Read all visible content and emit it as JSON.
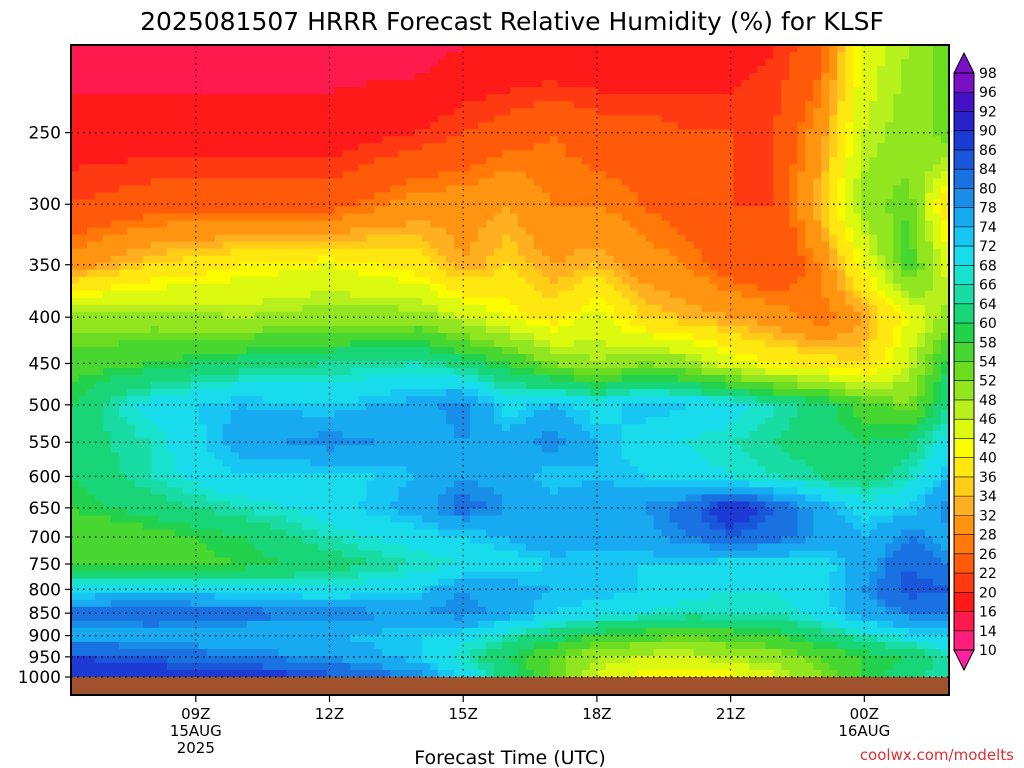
{
  "chart_data": {
    "type": "heatmap",
    "title": "2025081507 HRRR Forecast Relative Humidity (%) for KLSF",
    "xlabel": "Forecast Time (UTC)",
    "ylabel": "",
    "y_axis": {
      "scale": "log-pressure",
      "inverted": true,
      "range": [
        1000,
        200
      ],
      "ticks": [
        250,
        300,
        350,
        400,
        450,
        500,
        550,
        600,
        650,
        700,
        750,
        800,
        850,
        900,
        950,
        1000
      ]
    },
    "x_axis": {
      "range": [
        6.2,
        25.9
      ],
      "ticks": [
        {
          "hour": 9,
          "label": "09Z",
          "sub1": "15AUG",
          "sub2": "2025"
        },
        {
          "hour": 12,
          "label": "12Z",
          "sub1": "",
          "sub2": ""
        },
        {
          "hour": 15,
          "label": "15Z",
          "sub1": "",
          "sub2": ""
        },
        {
          "hour": 18,
          "label": "18Z",
          "sub1": "",
          "sub2": ""
        },
        {
          "hour": 21,
          "label": "21Z",
          "sub1": "",
          "sub2": ""
        },
        {
          "hour": 24,
          "label": "00Z",
          "sub1": "16AUG",
          "sub2": ""
        }
      ]
    },
    "grid": true,
    "colorbar": {
      "placement": "right",
      "levels": [
        10,
        14,
        16,
        20,
        22,
        26,
        28,
        32,
        34,
        36,
        40,
        42,
        46,
        48,
        52,
        54,
        58,
        60,
        64,
        66,
        68,
        72,
        74,
        78,
        80,
        84,
        86,
        90,
        92,
        96,
        98
      ],
      "colors": [
        "#ff1fa0",
        "#ff1f7a",
        "#ff1a4e",
        "#ff1a1a",
        "#ff3a12",
        "#ff5a0a",
        "#ff7808",
        "#ff9410",
        "#ffb020",
        "#ffcc18",
        "#ffe810",
        "#fcfc00",
        "#dcfa10",
        "#b8f01e",
        "#92e620",
        "#6cdc20",
        "#48d630",
        "#22d24c",
        "#18d678",
        "#18dca4",
        "#18e2cc",
        "#18dcec",
        "#18c6f4",
        "#18aaf0",
        "#188ee8",
        "#1a72e2",
        "#1a56da",
        "#1c3ad4",
        "#2822cc",
        "#4412c6",
        "#7a10c4"
      ]
    },
    "ground_color": "#a0522d",
    "credit": "coolwx.com/modelts",
    "humidity_field": {
      "pressure_levels": [
        200,
        250,
        300,
        350,
        400,
        450,
        500,
        550,
        600,
        650,
        700,
        750,
        800,
        850,
        900,
        950,
        990
      ],
      "times": [
        6.2,
        8,
        10,
        12,
        14,
        15,
        16,
        17,
        18,
        19,
        20,
        21,
        22,
        23,
        24,
        25,
        25.9
      ],
      "values": [
        [
          14,
          14,
          14,
          14,
          14,
          16,
          16,
          16,
          16,
          16,
          18,
          18,
          20,
          24,
          44,
          48,
          54
        ],
        [
          18,
          18,
          18,
          18,
          20,
          22,
          24,
          26,
          24,
          24,
          22,
          22,
          22,
          30,
          46,
          50,
          54
        ],
        [
          22,
          24,
          24,
          24,
          30,
          30,
          32,
          28,
          28,
          26,
          24,
          22,
          22,
          34,
          50,
          54,
          36
        ],
        [
          30,
          36,
          40,
          42,
          38,
          32,
          36,
          32,
          34,
          30,
          28,
          24,
          22,
          28,
          42,
          56,
          44
        ],
        [
          50,
          50,
          48,
          50,
          50,
          46,
          42,
          38,
          44,
          36,
          34,
          32,
          30,
          26,
          32,
          42,
          50
        ],
        [
          56,
          58,
          62,
          64,
          66,
          62,
          58,
          52,
          48,
          52,
          50,
          44,
          40,
          38,
          36,
          46,
          60
        ],
        [
          60,
          70,
          74,
          72,
          76,
          80,
          70,
          74,
          70,
          74,
          72,
          70,
          66,
          62,
          56,
          52,
          64
        ],
        [
          62,
          66,
          76,
          80,
          76,
          78,
          76,
          80,
          74,
          70,
          68,
          66,
          64,
          62,
          60,
          62,
          70
        ],
        [
          60,
          66,
          72,
          70,
          74,
          78,
          76,
          72,
          74,
          72,
          70,
          68,
          66,
          64,
          62,
          66,
          74
        ],
        [
          58,
          62,
          66,
          70,
          76,
          82,
          78,
          76,
          76,
          78,
          82,
          90,
          84,
          76,
          70,
          72,
          80
        ],
        [
          54,
          56,
          60,
          66,
          70,
          72,
          74,
          78,
          76,
          76,
          80,
          84,
          82,
          78,
          74,
          80,
          76
        ],
        [
          56,
          56,
          58,
          62,
          66,
          68,
          70,
          72,
          72,
          72,
          72,
          70,
          70,
          70,
          76,
          84,
          80
        ],
        [
          70,
          72,
          70,
          68,
          72,
          78,
          76,
          74,
          74,
          72,
          70,
          68,
          68,
          70,
          78,
          86,
          84
        ],
        [
          82,
          84,
          82,
          80,
          78,
          80,
          76,
          72,
          70,
          68,
          66,
          66,
          66,
          70,
          76,
          80,
          80
        ],
        [
          76,
          76,
          74,
          74,
          72,
          70,
          66,
          62,
          58,
          56,
          54,
          56,
          58,
          62,
          66,
          70,
          72
        ],
        [
          86,
          84,
          80,
          78,
          72,
          66,
          60,
          54,
          48,
          46,
          46,
          48,
          50,
          54,
          58,
          60,
          66
        ],
        [
          90,
          88,
          88,
          84,
          78,
          70,
          62,
          54,
          46,
          42,
          40,
          42,
          46,
          52,
          58,
          62,
          66
        ]
      ]
    }
  }
}
